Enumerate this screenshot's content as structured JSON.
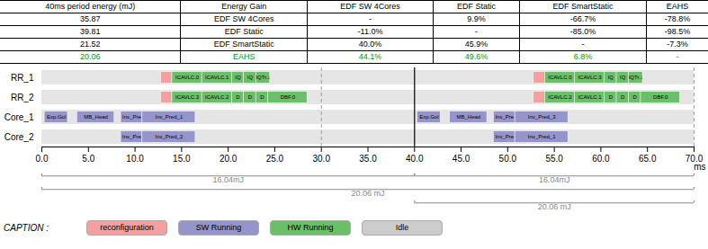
{
  "chart_data": {
    "type": "gantt",
    "table": {
      "headers": [
        "40ms period energy (mJ)",
        "Energy Gain",
        "EDF SW 4Cores",
        "EDF Static",
        "EDF SmartStatic",
        "EAHS"
      ],
      "rows": [
        {
          "cells": [
            "35.87",
            "EDF SW 4Cores",
            "-",
            "9.9%",
            "-66.7%",
            "-78.8%"
          ]
        },
        {
          "cells": [
            "39.81",
            "EDF Static",
            "-11.0%",
            "-",
            "-85.0%",
            "-98.5%"
          ]
        },
        {
          "cells": [
            "21.52",
            "EDF SmartStatic",
            "40.0%",
            "45.9%",
            "-",
            "-7.3%"
          ]
        },
        {
          "cells": [
            "20.06",
            "EAHS",
            "44.1%",
            "49.6%",
            "6.8%",
            "-"
          ],
          "color": "#009900"
        }
      ]
    },
    "categories": [
      "RR_1",
      "RR_2",
      "Core_1",
      "Core_2"
    ],
    "xlim": [
      0,
      70
    ],
    "xticks": [
      {
        "value": 0,
        "label": "0.0"
      },
      {
        "value": 5,
        "label": "5.0"
      },
      {
        "value": 10,
        "label": "10.0"
      },
      {
        "value": 15,
        "label": "15.0"
      },
      {
        "value": 20,
        "label": "20.0"
      },
      {
        "value": 25,
        "label": "25.0"
      },
      {
        "value": 30,
        "label": "30.0"
      },
      {
        "value": 35,
        "label": "35.0"
      },
      {
        "value": 40,
        "label": "40.0"
      },
      {
        "value": 45,
        "label": "45.0"
      },
      {
        "value": 50,
        "label": "50.0"
      },
      {
        "value": 55,
        "label": "55.0"
      },
      {
        "value": 60,
        "label": "60.0"
      },
      {
        "value": 65,
        "label": "65.0"
      },
      {
        "value": 70,
        "label": "70.0"
      }
    ],
    "xlabel": "ms",
    "row_color": "#e5e5e5",
    "tasks": [
      {
        "category": "RR_1",
        "start": 12.8,
        "end": 14.0,
        "color": "#f4a0a0"
      },
      {
        "category": "RR_1",
        "start": 14.0,
        "end": 17.2,
        "color": "#6abf69",
        "label": "ICAVLC.0"
      },
      {
        "category": "RR_1",
        "start": 17.2,
        "end": 20.4,
        "color": "#6abf69",
        "label": "ICAVLC.1"
      },
      {
        "category": "RR_1",
        "start": 20.4,
        "end": 21.7,
        "color": "#6abf69",
        "label": "IQ"
      },
      {
        "category": "RR_1",
        "start": 21.7,
        "end": 23.0,
        "color": "#6abf69",
        "label": "IQ"
      },
      {
        "category": "RR_1",
        "start": 23.0,
        "end": 24.5,
        "color": "#6abf69",
        "label": "IQTr.↓"
      },
      {
        "category": "RR_1",
        "start": 52.8,
        "end": 54.0,
        "color": "#f4a0a0"
      },
      {
        "category": "RR_1",
        "start": 54.0,
        "end": 57.2,
        "color": "#6abf69",
        "label": "ICAVLC.0"
      },
      {
        "category": "RR_1",
        "start": 57.2,
        "end": 60.4,
        "color": "#6abf69",
        "label": "ICAVLC.3"
      },
      {
        "category": "RR_1",
        "start": 60.4,
        "end": 61.7,
        "color": "#6abf69",
        "label": "IQ"
      },
      {
        "category": "RR_1",
        "start": 61.7,
        "end": 63.0,
        "color": "#6abf69",
        "label": "IQ"
      },
      {
        "category": "RR_1",
        "start": 63.0,
        "end": 64.5,
        "color": "#6abf69",
        "label": "IQTr.↓"
      },
      {
        "category": "RR_2",
        "start": 12.8,
        "end": 14.0,
        "color": "#f4a0a0"
      },
      {
        "category": "RR_2",
        "start": 14.0,
        "end": 17.2,
        "color": "#6abf69",
        "label": "ICAVLC.3"
      },
      {
        "category": "RR_2",
        "start": 17.2,
        "end": 20.4,
        "color": "#6abf69",
        "label": "ICAVLC.2"
      },
      {
        "category": "RR_2",
        "start": 20.4,
        "end": 21.7,
        "color": "#6abf69",
        "label": "D"
      },
      {
        "category": "RR_2",
        "start": 21.7,
        "end": 23.0,
        "color": "#6abf69",
        "label": "D"
      },
      {
        "category": "RR_2",
        "start": 23.0,
        "end": 24.3,
        "color": "#6abf69",
        "label": "D"
      },
      {
        "category": "RR_2",
        "start": 24.3,
        "end": 28.5,
        "color": "#6abf69",
        "label": "DBF.0"
      },
      {
        "category": "RR_2",
        "start": 52.8,
        "end": 54.0,
        "color": "#f4a0a0"
      },
      {
        "category": "RR_2",
        "start": 54.0,
        "end": 57.2,
        "color": "#6abf69",
        "label": "ICAVLC.2"
      },
      {
        "category": "RR_2",
        "start": 57.2,
        "end": 60.4,
        "color": "#6abf69",
        "label": "ICAVLC.1"
      },
      {
        "category": "RR_2",
        "start": 60.4,
        "end": 61.7,
        "color": "#6abf69",
        "label": "D"
      },
      {
        "category": "RR_2",
        "start": 61.7,
        "end": 63.0,
        "color": "#6abf69",
        "label": "D"
      },
      {
        "category": "RR_2",
        "start": 63.0,
        "end": 64.3,
        "color": "#6abf69",
        "label": "D"
      },
      {
        "category": "RR_2",
        "start": 64.3,
        "end": 68.5,
        "color": "#6abf69",
        "label": "DBF.0"
      },
      {
        "category": "Core_1",
        "start": 0.3,
        "end": 2.8,
        "color": "#9595cc",
        "label": "Exp.Gol"
      },
      {
        "category": "Core_1",
        "start": 3.8,
        "end": 7.8,
        "color": "#9595cc",
        "label": "MB_Head"
      },
      {
        "category": "Core_1",
        "start": 8.5,
        "end": 10.8,
        "color": "#9595cc",
        "label": "Inv_Pre"
      },
      {
        "category": "Core_1",
        "start": 10.8,
        "end": 16.5,
        "color": "#9595cc",
        "label": "Inv_Pred_1"
      },
      {
        "category": "Core_1",
        "start": 40.3,
        "end": 42.8,
        "color": "#9595cc",
        "label": "Exp.Gol"
      },
      {
        "category": "Core_1",
        "start": 43.8,
        "end": 47.8,
        "color": "#9595cc",
        "label": "MB_Head"
      },
      {
        "category": "Core_1",
        "start": 48.5,
        "end": 50.8,
        "color": "#9595cc",
        "label": "Inv_Pre"
      },
      {
        "category": "Core_1",
        "start": 50.8,
        "end": 56.5,
        "color": "#9595cc",
        "label": "Inv_Pred_3"
      },
      {
        "category": "Core_2",
        "start": 8.5,
        "end": 10.8,
        "color": "#9595cc",
        "label": "Inv_Pre"
      },
      {
        "category": "Core_2",
        "start": 10.8,
        "end": 16.5,
        "color": "#9595cc",
        "label": "Inv_Pred_2"
      },
      {
        "category": "Core_2",
        "start": 48.5,
        "end": 50.8,
        "color": "#9595cc",
        "label": "Inv_Pre"
      },
      {
        "category": "Core_2",
        "start": 50.8,
        "end": 56.5,
        "color": "#9595cc",
        "label": "Inv_Pred_1"
      }
    ],
    "rules": [
      {
        "x": 40,
        "color": "#000000",
        "line_style": "solid"
      },
      {
        "x": 30,
        "color": "#888888",
        "line_style": "dashed"
      },
      {
        "x": 70,
        "color": "#888888",
        "line_style": "dashed"
      }
    ],
    "brackets": [
      {
        "start": 0,
        "end": 40,
        "label": "16.04mJ",
        "color": "#888888"
      },
      {
        "start": 40,
        "end": 70,
        "label": "16.04mJ",
        "color": "#888888"
      },
      {
        "start": 0,
        "end": 70,
        "label": "20.06 mJ",
        "color": "#888888"
      },
      {
        "start": 40,
        "end": 70,
        "label": "20.06 mJ",
        "color": "#888888"
      }
    ],
    "legend_title": "CAPTION :",
    "legend_entries": [
      {
        "name": "reconfiguration",
        "color": "#f4a0a0"
      },
      {
        "name": "SW Running",
        "color": "#9595cc"
      },
      {
        "name": "HW Running",
        "color": "#6abf69"
      },
      {
        "name": "Idle",
        "color": "#cccccc"
      }
    ]
  }
}
